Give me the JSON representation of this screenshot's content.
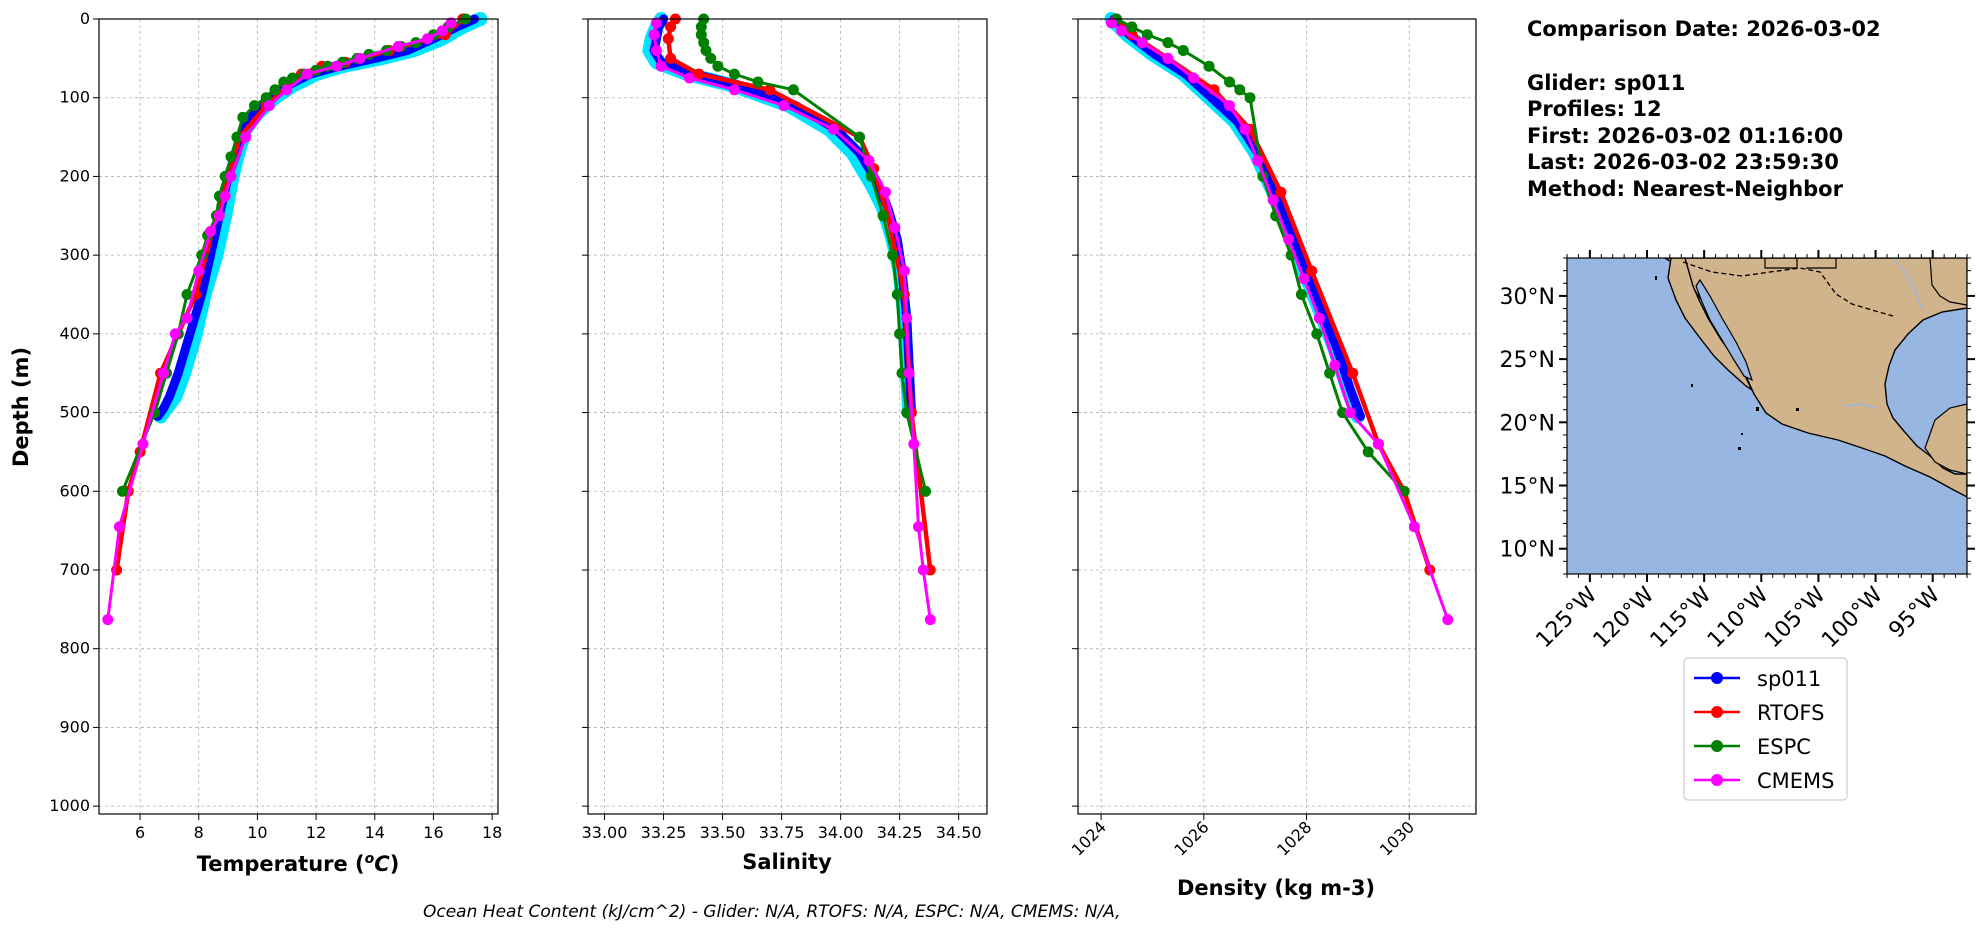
{
  "info": {
    "comparison_date": "Comparison Date: 2026-03-02",
    "glider": "Glider: sp011",
    "profiles": "Profiles: 12",
    "first": "First: 2026-03-02 01:16:00",
    "last": "Last: 2026-03-02 23:59:30",
    "method": "Method: Nearest-Neighbor"
  },
  "footer": "Ocean Heat Content (kJ/cm^2) - Glider: N/A,  RTOFS: N/A,  ESPC: N/A,  CMEMS: N/A,",
  "colors": {
    "sp011": "#0000ff",
    "sp011_spread": "#00e5ff",
    "RTOFS": "#ff0000",
    "ESPC": "#008000",
    "CMEMS": "#ff00ff",
    "ocean": "#98b6e2",
    "land": "#d2b48c",
    "grid": "#b0b0b0"
  },
  "legend": [
    {
      "name": "sp011",
      "color": "#0000ff"
    },
    {
      "name": "RTOFS",
      "color": "#ff0000"
    },
    {
      "name": "ESPC",
      "color": "#008000"
    },
    {
      "name": "CMEMS",
      "color": "#ff00ff"
    }
  ],
  "map": {
    "lon_range": [
      -127,
      -92
    ],
    "lat_range": [
      8,
      33
    ],
    "lon_ticks": [
      {
        "v": -125,
        "label": "125°W"
      },
      {
        "v": -120,
        "label": "120°W"
      },
      {
        "v": -115,
        "label": "115°W"
      },
      {
        "v": -110,
        "label": "110°W"
      },
      {
        "v": -105,
        "label": "105°W"
      },
      {
        "v": -100,
        "label": "100°W"
      },
      {
        "v": -95,
        "label": "95°W"
      }
    ],
    "lat_ticks": [
      {
        "v": 30,
        "label": "30°N"
      },
      {
        "v": 25,
        "label": "25°N"
      },
      {
        "v": 20,
        "label": "20°N"
      },
      {
        "v": 15,
        "label": "15°N"
      },
      {
        "v": 10,
        "label": "10°N"
      }
    ]
  },
  "chart_data": [
    {
      "type": "line",
      "xlabel": "Temperature (oC)",
      "ylabel": "Depth (m)",
      "xlim": [
        4.6,
        18.2
      ],
      "ylim": [
        1010,
        0
      ],
      "grid": true,
      "xticks": [
        6,
        8,
        10,
        12,
        14,
        16,
        18
      ],
      "yticks": [
        0,
        100,
        200,
        300,
        400,
        500,
        600,
        700,
        800,
        900,
        1000
      ],
      "spread": {
        "name": "sp011",
        "x": [
          17.6,
          17.0,
          16.3,
          15.3,
          14.2,
          12.9,
          12.0,
          11.2,
          10.6,
          10.0,
          9.6,
          9.35,
          9.15,
          8.9,
          8.6,
          8.2,
          7.9,
          7.5,
          7.2,
          6.9,
          6.7
        ],
        "y": [
          0,
          10,
          25,
          40,
          50,
          60,
          70,
          85,
          100,
          120,
          140,
          170,
          200,
          250,
          300,
          350,
          400,
          450,
          480,
          495,
          505
        ]
      },
      "series": [
        {
          "name": "sp011",
          "x": [
            17.4,
            16.8,
            16.0,
            15.1,
            14.0,
            12.8,
            11.8,
            11.0,
            10.4,
            9.9,
            9.5,
            9.3,
            9.0,
            8.7,
            8.4,
            8.1,
            7.7,
            7.3,
            7.0,
            6.8,
            6.6
          ],
          "y": [
            0,
            10,
            25,
            40,
            50,
            60,
            70,
            85,
            100,
            120,
            140,
            170,
            200,
            250,
            300,
            350,
            400,
            450,
            480,
            495,
            505
          ]
        },
        {
          "name": "RTOFS",
          "x": [
            17.0,
            16.4,
            14.5,
            13.0,
            12.2,
            11.5,
            10.3,
            9.4,
            8.6,
            7.9,
            7.3,
            6.7,
            6.0,
            5.6,
            5.2
          ],
          "y": [
            0,
            20,
            40,
            55,
            60,
            70,
            110,
            150,
            250,
            350,
            400,
            450,
            550,
            600,
            700
          ]
        },
        {
          "name": "ESPC",
          "x": [
            17.1,
            16.5,
            16.0,
            15.4,
            14.9,
            14.4,
            13.8,
            13.4,
            12.9,
            12.4,
            12.0,
            11.6,
            11.2,
            10.9,
            10.6,
            10.3,
            9.9,
            9.5,
            9.3,
            9.1,
            8.9,
            8.7,
            8.6,
            8.3,
            8.1,
            7.6,
            7.3,
            6.9,
            6.5,
            5.4
          ],
          "y": [
            0,
            10,
            20,
            30,
            35,
            40,
            45,
            50,
            55,
            60,
            65,
            70,
            75,
            80,
            90,
            100,
            110,
            125,
            150,
            175,
            200,
            225,
            250,
            275,
            300,
            350,
            400,
            450,
            500,
            600
          ]
        },
        {
          "name": "CMEMS",
          "x": [
            16.6,
            16.3,
            15.8,
            14.8,
            13.5,
            12.7,
            11.7,
            11.0,
            10.4,
            9.6,
            9.1,
            8.9,
            8.7,
            8.4,
            8.0,
            7.6,
            7.2,
            6.8,
            6.1,
            5.3,
            4.9
          ],
          "y": [
            5,
            15,
            25,
            35,
            50,
            60,
            70,
            90,
            110,
            150,
            200,
            225,
            250,
            270,
            320,
            380,
            400,
            450,
            540,
            645,
            763
          ]
        }
      ]
    },
    {
      "type": "line",
      "xlabel": "Salinity",
      "ylabel": "Depth (m)",
      "xlim": [
        32.93,
        34.62
      ],
      "ylim": [
        1010,
        0
      ],
      "grid": true,
      "xticks": [
        33.0,
        33.25,
        33.5,
        33.75,
        34.0,
        34.25,
        34.5
      ],
      "yticks": [
        0,
        100,
        200,
        300,
        400,
        500,
        600,
        700,
        800,
        900,
        1000
      ],
      "spread": {
        "name": "sp011",
        "x": [
          33.24,
          33.22,
          33.2,
          33.19,
          33.22,
          33.35,
          33.55,
          33.78,
          33.95,
          34.05,
          34.09,
          34.13,
          34.18,
          34.22,
          34.25,
          34.27,
          34.28,
          34.29
        ],
        "y": [
          0,
          10,
          25,
          40,
          55,
          70,
          85,
          110,
          140,
          170,
          190,
          210,
          240,
          280,
          320,
          380,
          440,
          500
        ]
      },
      "series": [
        {
          "name": "sp011",
          "x": [
            33.25,
            33.23,
            33.22,
            33.21,
            33.24,
            33.38,
            33.58,
            33.81,
            33.98,
            34.08,
            34.12,
            34.16,
            34.2,
            34.24,
            34.26,
            34.28,
            34.29,
            34.3
          ],
          "y": [
            0,
            10,
            25,
            40,
            55,
            70,
            85,
            110,
            140,
            170,
            190,
            210,
            240,
            280,
            320,
            380,
            440,
            500
          ]
        },
        {
          "name": "RTOFS",
          "x": [
            33.3,
            33.28,
            33.27,
            33.28,
            33.4,
            33.7,
            34.08,
            34.14,
            34.2,
            34.27,
            34.3,
            34.38
          ],
          "y": [
            0,
            10,
            25,
            50,
            70,
            90,
            150,
            190,
            250,
            350,
            500,
            700
          ]
        },
        {
          "name": "ESPC",
          "x": [
            33.42,
            33.41,
            33.41,
            33.42,
            33.43,
            33.45,
            33.48,
            33.55,
            33.65,
            33.8,
            34.08,
            34.13,
            34.18,
            34.22,
            34.24,
            34.25,
            34.26,
            34.28,
            34.36
          ],
          "y": [
            0,
            10,
            20,
            30,
            40,
            50,
            60,
            70,
            80,
            90,
            150,
            200,
            250,
            300,
            350,
            400,
            450,
            500,
            600
          ]
        },
        {
          "name": "CMEMS",
          "x": [
            33.22,
            33.21,
            33.22,
            33.24,
            33.36,
            33.55,
            33.76,
            33.97,
            34.12,
            34.19,
            34.23,
            34.27,
            34.28,
            34.29,
            34.31,
            34.33,
            34.35,
            34.38
          ],
          "y": [
            5,
            20,
            40,
            60,
            75,
            90,
            110,
            140,
            180,
            220,
            265,
            320,
            380,
            450,
            540,
            645,
            700,
            763
          ]
        }
      ]
    },
    {
      "type": "line",
      "xlabel": "Density (kg m-3)",
      "ylabel": "Depth (m)",
      "xlim": [
        1023.55,
        1031.3
      ],
      "ylim": [
        1010,
        0
      ],
      "grid": true,
      "xticks": [
        1024,
        1026,
        1028,
        1030
      ],
      "yticks": [
        0,
        100,
        200,
        300,
        400,
        500,
        600,
        700,
        800,
        900,
        1000
      ],
      "spread": {
        "name": "sp011",
        "x": [
          1024.2,
          1024.5,
          1025.0,
          1025.6,
          1026.1,
          1026.6,
          1027.0,
          1027.35,
          1027.65,
          1027.95,
          1028.25,
          1028.55,
          1028.8,
          1029.0
        ],
        "y": [
          0,
          20,
          45,
          70,
          100,
          130,
          170,
          220,
          270,
          320,
          370,
          420,
          470,
          505
        ]
      },
      "series": [
        {
          "name": "sp011",
          "x": [
            1024.25,
            1024.55,
            1025.05,
            1025.65,
            1026.15,
            1026.65,
            1027.05,
            1027.4,
            1027.7,
            1028.0,
            1028.3,
            1028.6,
            1028.85,
            1029.05
          ],
          "y": [
            0,
            20,
            45,
            70,
            100,
            130,
            170,
            220,
            270,
            320,
            370,
            420,
            470,
            505
          ]
        },
        {
          "name": "RTOFS",
          "x": [
            1024.3,
            1024.6,
            1025.3,
            1026.2,
            1026.9,
            1027.5,
            1028.1,
            1028.9,
            1029.4,
            1029.9,
            1030.4
          ],
          "y": [
            0,
            20,
            50,
            90,
            140,
            220,
            320,
            450,
            540,
            600,
            700
          ]
        },
        {
          "name": "ESPC",
          "x": [
            1024.3,
            1024.6,
            1024.9,
            1025.3,
            1025.6,
            1026.1,
            1026.5,
            1026.7,
            1026.9,
            1027.15,
            1027.4,
            1027.7,
            1027.9,
            1028.2,
            1028.45,
            1028.7,
            1029.2,
            1029.9
          ],
          "y": [
            0,
            10,
            20,
            30,
            40,
            60,
            80,
            90,
            100,
            200,
            250,
            300,
            350,
            400,
            450,
            500,
            550,
            600
          ]
        },
        {
          "name": "CMEMS",
          "x": [
            1024.2,
            1024.4,
            1024.8,
            1025.3,
            1025.8,
            1026.5,
            1026.8,
            1027.05,
            1027.35,
            1027.65,
            1027.95,
            1028.25,
            1028.55,
            1028.85,
            1029.4,
            1030.1,
            1030.75
          ],
          "y": [
            5,
            15,
            30,
            50,
            75,
            110,
            140,
            180,
            230,
            280,
            330,
            380,
            440,
            500,
            540,
            645,
            763
          ]
        }
      ]
    }
  ]
}
